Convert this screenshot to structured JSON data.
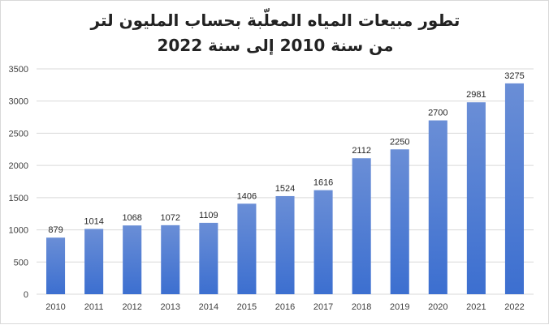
{
  "chart_data": {
    "type": "bar",
    "title_line1": "تطور مبيعات المياه المعلّبة بحساب المليون لتر",
    "title_line2": "من سنة 2010  إلى سنة 2022",
    "categories": [
      "2010",
      "2011",
      "2012",
      "2013",
      "2014",
      "2015",
      "2016",
      "2017",
      "2018",
      "2019",
      "2020",
      "2021",
      "2022"
    ],
    "values": [
      879,
      1014,
      1068,
      1072,
      1109,
      1406,
      1524,
      1616,
      2112,
      2250,
      2700,
      2981,
      3275
    ],
    "data_labels": [
      "879",
      "1014",
      "1068",
      "1072",
      "1109",
      "1406",
      "1524",
      "1616",
      "2112",
      "2250",
      "2700",
      "2981",
      "3275"
    ],
    "ylim": [
      0,
      3500
    ],
    "yticks": [
      "0",
      "500",
      "1000",
      "1500",
      "2000",
      "2500",
      "3000",
      "3500"
    ],
    "ytick_values": [
      0,
      500,
      1000,
      1500,
      2000,
      2500,
      3000,
      3500
    ],
    "grid": true,
    "bar_color_top": "#6a8ed6",
    "bar_color_bottom": "#3c6fd0"
  }
}
